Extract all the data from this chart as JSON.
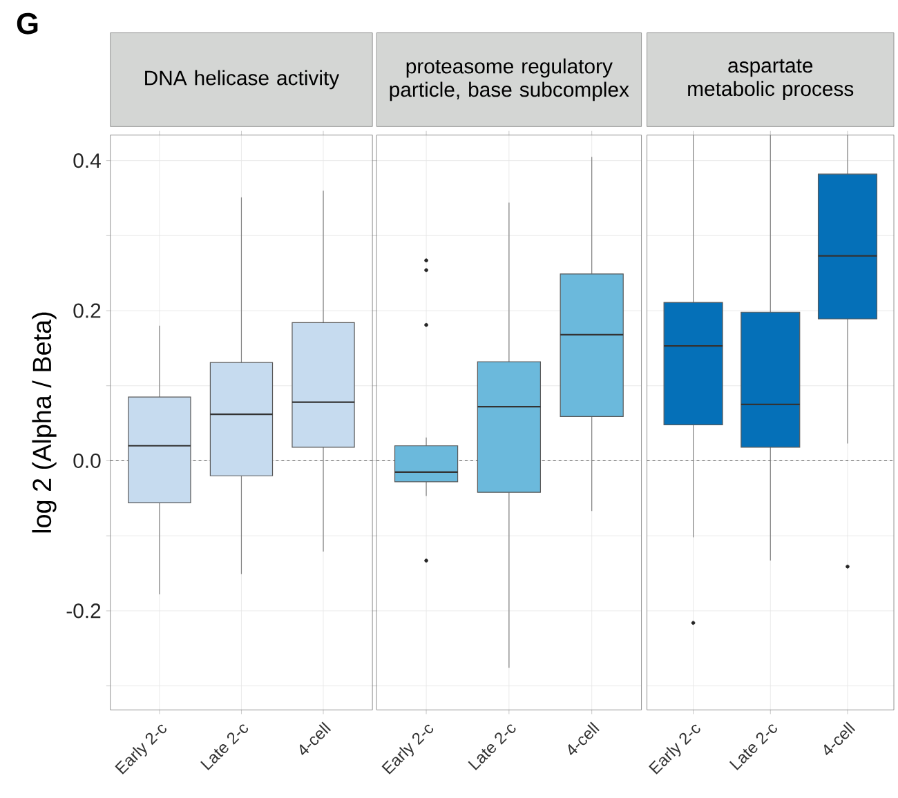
{
  "chart_data": [
    {
      "type": "box",
      "title": "DNA helicase activity",
      "ylabel": "log 2 (Alpha / Beta)",
      "annotations": [
        "G"
      ],
      "categories": [
        "Early 2-c",
        "Late 2-c",
        "4-cell"
      ],
      "color": "#c6dbef",
      "boxes": [
        {
          "low": -0.178,
          "q1": -0.056,
          "median": 0.02,
          "q3": 0.085,
          "high": 0.18
        },
        {
          "low": -0.151,
          "q1": -0.02,
          "median": 0.062,
          "q3": 0.131,
          "high": 0.351
        },
        {
          "low": -0.121,
          "q1": 0.018,
          "median": 0.078,
          "q3": 0.184,
          "high": 0.36
        }
      ],
      "ylim": [
        -0.332,
        0.434
      ],
      "yticks": [
        {
          "value": -0.3,
          "label": null
        },
        -0.2,
        {
          "value": -0.1,
          "label": null
        },
        {
          "value": 0,
          "label": "0.0"
        },
        {
          "value": 0.1,
          "label": null
        },
        0.2,
        {
          "value": 0.3,
          "label": null
        },
        0.4
      ],
      "ref_lines": [
        {
          "axis": "y",
          "value": 0,
          "line_style": "dashed",
          "color": "#333333"
        }
      ],
      "grid": true
    },
    {
      "type": "box",
      "title": "proteasome regulatory particle, base subcomplex",
      "categories": [
        "Early 2-c",
        "Late 2-c",
        "4-cell"
      ],
      "color": "#6bb9dc",
      "boxes": [
        {
          "low": -0.047,
          "q1": -0.028,
          "median": -0.015,
          "q3": 0.02,
          "high": 0.031,
          "outliers": [
            0.267,
            0.254,
            0.181,
            -0.133
          ]
        },
        {
          "low": -0.276,
          "q1": -0.042,
          "median": 0.072,
          "q3": 0.132,
          "high": 0.344
        },
        {
          "low": -0.067,
          "q1": 0.059,
          "median": 0.168,
          "q3": 0.249,
          "high": 0.405
        }
      ],
      "ylim": [
        -0.332,
        0.434
      ],
      "yticks": [
        {
          "value": -0.3,
          "label": null
        },
        -0.2,
        {
          "value": -0.1,
          "label": null
        },
        0.0,
        {
          "value": 0.1,
          "label": null
        },
        0.2,
        {
          "value": 0.3,
          "label": null
        },
        0.4
      ],
      "tick_labels": "x",
      "ref_lines": [
        {
          "axis": "y",
          "value": 0,
          "line_style": "dashed",
          "color": "#333333"
        }
      ],
      "grid": true
    },
    {
      "type": "box",
      "title": "aspartate metabolic process",
      "categories": [
        "Early 2-c",
        "Late 2-c",
        "4-cell"
      ],
      "color": "#0570b8",
      "boxes": [
        {
          "low": -0.102,
          "q1": 0.048,
          "median": 0.153,
          "q3": 0.211,
          "high": 0.434,
          "outliers": [
            -0.216
          ]
        },
        {
          "low": -0.133,
          "q1": 0.018,
          "median": 0.075,
          "q3": 0.198,
          "high": 0.434
        },
        {
          "low": 0.023,
          "q1": 0.189,
          "median": 0.273,
          "q3": 0.382,
          "high": 0.434,
          "outliers": [
            -0.141
          ]
        }
      ],
      "ylim": [
        -0.332,
        0.434
      ],
      "yticks": [
        {
          "value": -0.3,
          "label": null
        },
        -0.2,
        {
          "value": -0.1,
          "label": null
        },
        0.0,
        {
          "value": 0.1,
          "label": null
        },
        0.2,
        {
          "value": 0.3,
          "label": null
        },
        0.4
      ],
      "tick_labels": "x",
      "ref_lines": [
        {
          "axis": "y",
          "value": 0,
          "line_style": "dashed",
          "color": "#333333"
        }
      ],
      "grid": true
    }
  ]
}
